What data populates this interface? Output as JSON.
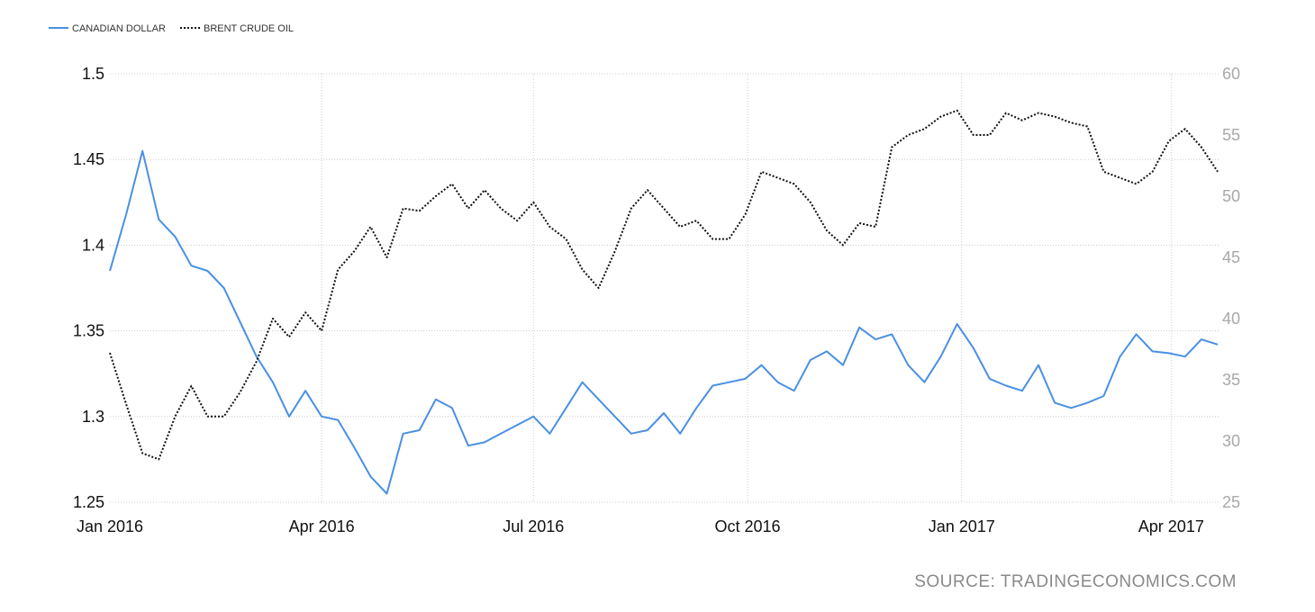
{
  "chart_data": {
    "type": "line",
    "x": [
      "2016-01-01",
      "2016-01-08",
      "2016-01-15",
      "2016-01-22",
      "2016-01-29",
      "2016-02-05",
      "2016-02-12",
      "2016-02-19",
      "2016-02-26",
      "2016-03-04",
      "2016-03-11",
      "2016-03-18",
      "2016-03-25",
      "2016-04-01",
      "2016-04-08",
      "2016-04-15",
      "2016-04-22",
      "2016-04-29",
      "2016-05-06",
      "2016-05-13",
      "2016-05-20",
      "2016-05-27",
      "2016-06-03",
      "2016-06-10",
      "2016-06-17",
      "2016-06-24",
      "2016-07-01",
      "2016-07-08",
      "2016-07-15",
      "2016-07-22",
      "2016-07-29",
      "2016-08-05",
      "2016-08-12",
      "2016-08-19",
      "2016-08-26",
      "2016-09-02",
      "2016-09-09",
      "2016-09-16",
      "2016-09-23",
      "2016-09-30",
      "2016-10-07",
      "2016-10-14",
      "2016-10-21",
      "2016-10-28",
      "2016-11-04",
      "2016-11-11",
      "2016-11-18",
      "2016-11-25",
      "2016-12-02",
      "2016-12-09",
      "2016-12-16",
      "2016-12-23",
      "2016-12-30",
      "2017-01-06",
      "2017-01-13",
      "2017-01-20",
      "2017-01-27",
      "2017-02-03",
      "2017-02-10",
      "2017-02-17",
      "2017-02-24",
      "2017-03-03",
      "2017-03-10",
      "2017-03-17",
      "2017-03-24",
      "2017-03-31",
      "2017-04-07",
      "2017-04-14",
      "2017-04-21"
    ],
    "series": [
      {
        "name": "CANADIAN DOLLAR",
        "color": "#4a90e2",
        "axis": "left",
        "values": [
          1.385,
          1.418,
          1.455,
          1.415,
          1.405,
          1.388,
          1.385,
          1.375,
          1.355,
          1.335,
          1.32,
          1.3,
          1.315,
          1.3,
          1.298,
          1.282,
          1.265,
          1.255,
          1.29,
          1.292,
          1.31,
          1.305,
          1.283,
          1.285,
          1.29,
          1.295,
          1.3,
          1.29,
          1.305,
          1.32,
          1.31,
          1.3,
          1.29,
          1.292,
          1.302,
          1.29,
          1.305,
          1.318,
          1.32,
          1.322,
          1.33,
          1.32,
          1.315,
          1.333,
          1.338,
          1.33,
          1.352,
          1.345,
          1.348,
          1.33,
          1.32,
          1.335,
          1.354,
          1.34,
          1.322,
          1.318,
          1.315,
          1.33,
          1.308,
          1.305,
          1.308,
          1.312,
          1.335,
          1.348,
          1.338,
          1.337,
          1.335,
          1.345,
          1.342
        ]
      },
      {
        "name": "BRENT CRUDE OIL",
        "color": "#111111",
        "axis": "right",
        "values": [
          37.2,
          33,
          29,
          28.5,
          32,
          34.5,
          32,
          32,
          34,
          36.5,
          40,
          38.5,
          40.5,
          39,
          44,
          45.5,
          47.5,
          45,
          49,
          48.8,
          50,
          51,
          49,
          50.5,
          49,
          48,
          49.5,
          47.5,
          46.5,
          44,
          42.5,
          45.5,
          49,
          50.5,
          49,
          47.5,
          48,
          46.5,
          46.5,
          48.5,
          52,
          51.5,
          51,
          49.5,
          47.2,
          46,
          47.8,
          47.5,
          54,
          55,
          55.5,
          56.5,
          57,
          55,
          55,
          56.8,
          56.2,
          56.8,
          56.5,
          56,
          55.7,
          52,
          51.5,
          51,
          52,
          54.5,
          55.5,
          54,
          52
        ]
      }
    ],
    "legend": [
      "CANADIAN DOLLAR",
      "BRENT CRUDE OIL"
    ],
    "legend_position": "top-left",
    "x_tick_labels": [
      "Jan 2016",
      "Apr 2016",
      "Jul 2016",
      "Oct 2016",
      "Jan 2017",
      "Apr 2017"
    ],
    "x_tick_dates": [
      "2016-01-01",
      "2016-04-01",
      "2016-07-01",
      "2016-10-01",
      "2017-01-01",
      "2017-04-01"
    ],
    "y_left": {
      "lim": [
        1.25,
        1.5
      ],
      "ticks": [
        "1.25",
        "1.3",
        "1.35",
        "1.4",
        "1.45",
        "1.5"
      ]
    },
    "y_right": {
      "lim": [
        25,
        60
      ],
      "ticks": [
        "25",
        "30",
        "35",
        "40",
        "45",
        "50",
        "55",
        "60"
      ]
    },
    "grid": "dotted",
    "source": "SOURCE: TRADINGECONOMICS.COM",
    "colors": {
      "grid": "#cccccc",
      "right_axis_text": "#a8a8a8"
    }
  }
}
